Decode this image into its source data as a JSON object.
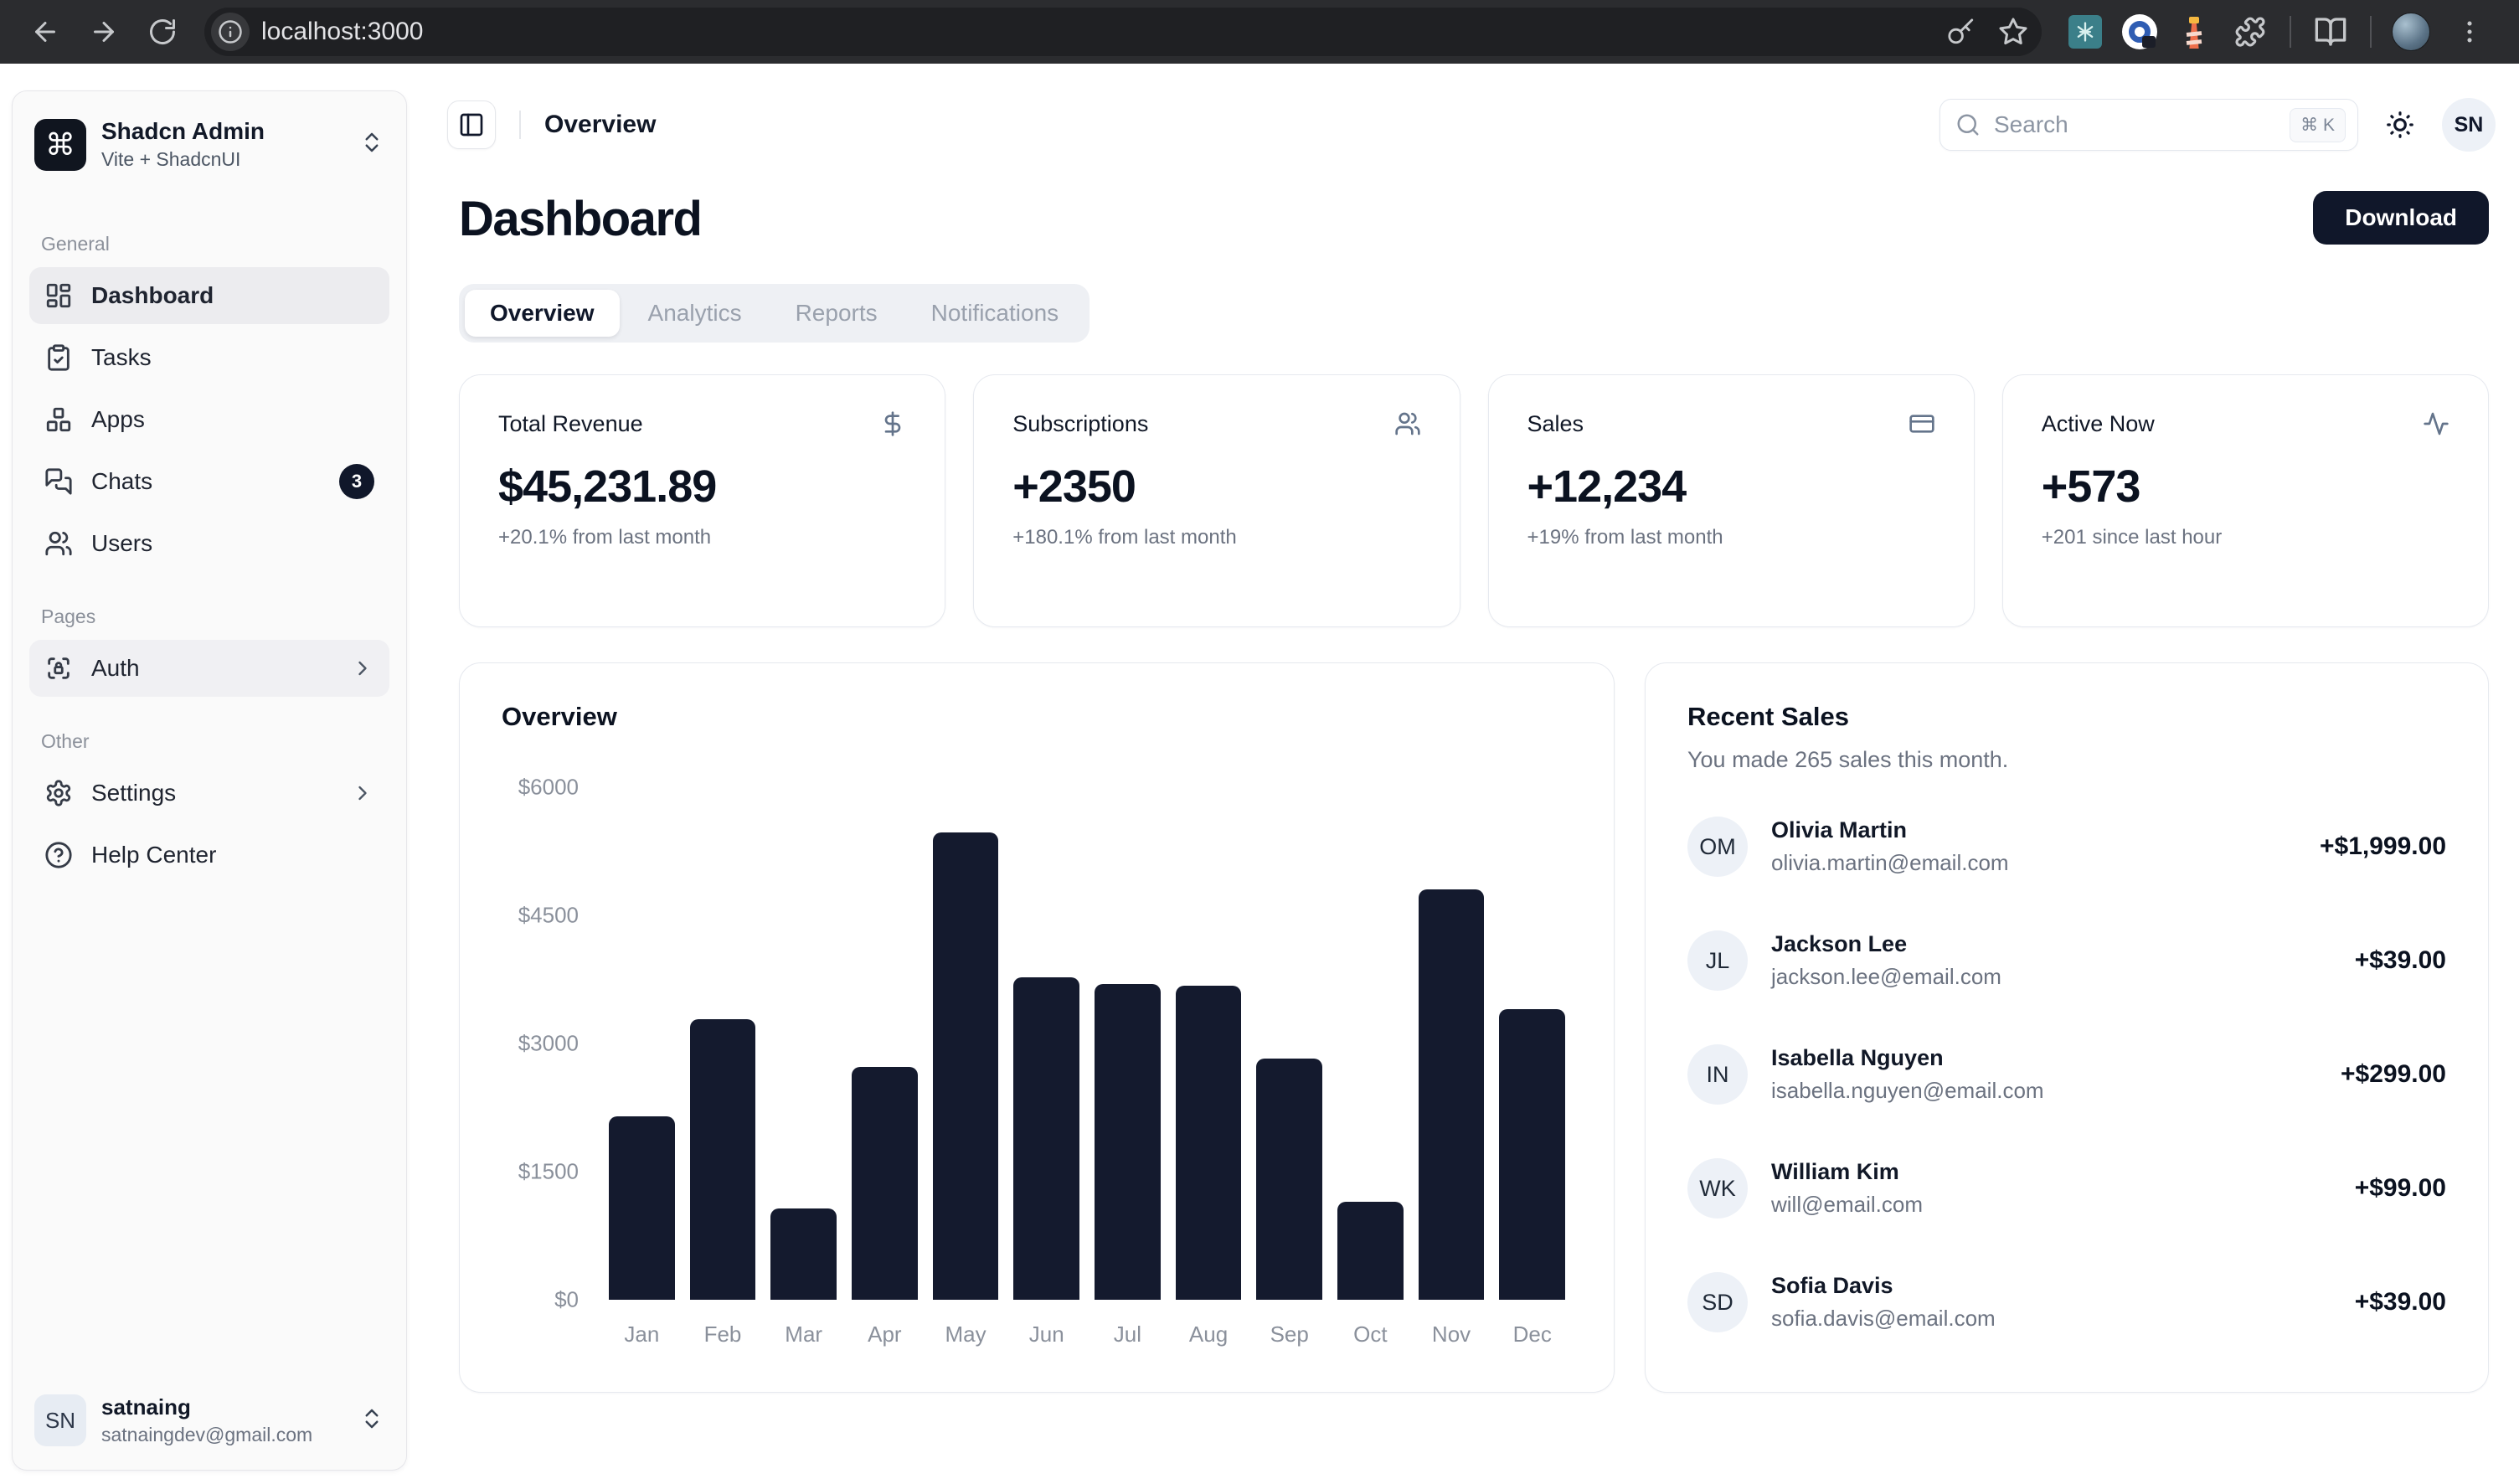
{
  "browser": {
    "url": "localhost:3000",
    "toolbar_icons": [
      "back-icon",
      "forward-icon",
      "reload-icon",
      "site-info-icon",
      "password-key-icon",
      "bookmark-star-icon",
      "extension-teal-icon",
      "extension-1password-icon",
      "extension-lighthouse-icon",
      "extensions-puzzle-icon",
      "reading-list-icon",
      "profile-avatar",
      "menu-dots-icon"
    ]
  },
  "sidebar": {
    "team": {
      "name": "Shadcn Admin",
      "plan": "Vite + ShadcnUI",
      "logo_glyph": "⌘",
      "switcher_icon": "chevrons-up-down-icon"
    },
    "sections": [
      {
        "label": "General",
        "items": [
          {
            "label": "Dashboard",
            "icon": "dashboard",
            "active": true
          },
          {
            "label": "Tasks",
            "icon": "tasks"
          },
          {
            "label": "Apps",
            "icon": "apps"
          },
          {
            "label": "Chats",
            "icon": "chats",
            "badge": "3"
          },
          {
            "label": "Users",
            "icon": "users"
          }
        ]
      },
      {
        "label": "Pages",
        "items": [
          {
            "label": "Auth",
            "icon": "auth",
            "chevron": true,
            "highlight": true
          }
        ]
      },
      {
        "label": "Other",
        "items": [
          {
            "label": "Settings",
            "icon": "settings",
            "chevron": true
          },
          {
            "label": "Help Center",
            "icon": "help"
          }
        ]
      }
    ],
    "user": {
      "initials": "SN",
      "name": "satnaing",
      "email": "satnaingdev@gmail.com"
    }
  },
  "header": {
    "title": "Overview",
    "panel_toggle_icon": "panel-left-icon",
    "search": {
      "placeholder": "Search",
      "shortcut": "⌘ K",
      "icon": "search-icon"
    },
    "theme_icon": "sun-icon",
    "user_initials": "SN"
  },
  "page": {
    "title": "Dashboard",
    "download_label": "Download",
    "tabs": [
      {
        "label": "Overview",
        "active": true
      },
      {
        "label": "Analytics",
        "active": false
      },
      {
        "label": "Reports",
        "active": false
      },
      {
        "label": "Notifications",
        "active": false
      }
    ]
  },
  "stats": [
    {
      "title": "Total Revenue",
      "icon": "dollar-sign",
      "value": "$45,231.89",
      "change": "+20.1% from last month"
    },
    {
      "title": "Subscriptions",
      "icon": "users",
      "value": "+2350",
      "change": "+180.1% from last month"
    },
    {
      "title": "Sales",
      "icon": "credit-card",
      "value": "+12,234",
      "change": "+19% from last month"
    },
    {
      "title": "Active Now",
      "icon": "activity",
      "value": "+573",
      "change": "+201 since last hour"
    }
  ],
  "chart_data": {
    "type": "bar",
    "title": "Overview",
    "categories": [
      "Jan",
      "Feb",
      "Mar",
      "Apr",
      "May",
      "Jun",
      "Jul",
      "Aug",
      "Sep",
      "Oct",
      "Nov",
      "Dec"
    ],
    "values": [
      2150,
      3280,
      1070,
      2730,
      5470,
      3770,
      3700,
      3680,
      2820,
      1150,
      4800,
      3400
    ],
    "xlabel": "",
    "ylabel": "",
    "ylim": [
      0,
      6000
    ],
    "yticks": [
      "$6000",
      "$4500",
      "$3000",
      "$1500",
      "$0"
    ],
    "grid": false,
    "bar_color": "#141a2e"
  },
  "recent_sales": {
    "title": "Recent Sales",
    "subtitle": "You made 265 sales this month.",
    "items": [
      {
        "initials": "OM",
        "name": "Olivia Martin",
        "email": "olivia.martin@email.com",
        "amount": "+$1,999.00"
      },
      {
        "initials": "JL",
        "name": "Jackson Lee",
        "email": "jackson.lee@email.com",
        "amount": "+$39.00"
      },
      {
        "initials": "IN",
        "name": "Isabella Nguyen",
        "email": "isabella.nguyen@email.com",
        "amount": "+$299.00"
      },
      {
        "initials": "WK",
        "name": "William Kim",
        "email": "will@email.com",
        "amount": "+$99.00"
      },
      {
        "initials": "SD",
        "name": "Sofia Davis",
        "email": "sofia.davis@email.com",
        "amount": "+$39.00"
      }
    ]
  }
}
